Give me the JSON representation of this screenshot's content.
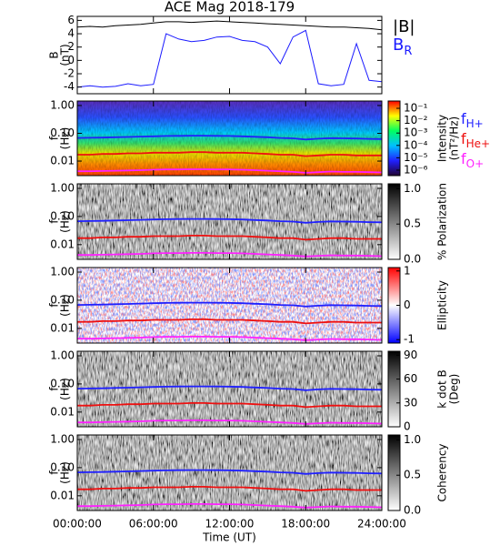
{
  "chart_data": [
    {
      "type": "line",
      "title": "ACE Mag 2018-179",
      "ylabel": [
        "B",
        "(nT)"
      ],
      "x": [
        0,
        1,
        2,
        3,
        4,
        5,
        6,
        7,
        8,
        9,
        10,
        11,
        12,
        13,
        14,
        15,
        16,
        17,
        18,
        19,
        20,
        21,
        22,
        23,
        24
      ],
      "xlim": [
        0,
        24
      ],
      "xticks": [
        0,
        6,
        12,
        18,
        24
      ],
      "ylim": [
        -5,
        6.6
      ],
      "yticks": [
        6,
        4,
        2,
        0,
        -2,
        -4
      ],
      "series": [
        {
          "name": "|B|",
          "color": "#000000",
          "values": [
            5.0,
            5.1,
            5.0,
            5.2,
            5.3,
            5.4,
            5.6,
            5.8,
            5.8,
            5.7,
            5.8,
            5.9,
            5.8,
            5.7,
            5.6,
            5.5,
            5.4,
            5.3,
            5.2,
            5.1,
            5.0,
            5.0,
            4.9,
            4.8,
            4.6
          ]
        },
        {
          "name": "B",
          "name_sub": "R",
          "color": "#1a1aff",
          "values": [
            -4.0,
            -3.8,
            -4.0,
            -3.9,
            -3.5,
            -3.8,
            -3.6,
            4.0,
            3.2,
            2.8,
            3.0,
            3.5,
            3.6,
            3.0,
            2.8,
            2.0,
            -0.5,
            3.5,
            4.5,
            -3.5,
            -3.8,
            -3.6,
            2.5,
            -3.0,
            -3.2
          ]
        }
      ]
    },
    {
      "type": "spectrogram",
      "style": "rainbow",
      "ylabel": [
        "f",
        "(Hz)"
      ],
      "x": [
        0,
        1,
        2,
        3,
        4,
        5,
        6,
        7,
        8,
        9,
        10,
        11,
        12,
        13,
        14,
        15,
        16,
        17,
        18,
        19,
        20,
        21,
        22,
        23,
        24
      ],
      "xlim": [
        0,
        24
      ],
      "xticks": [
        0,
        6,
        12,
        18,
        24
      ],
      "ylim": [
        0.003,
        1.45
      ],
      "ylog": true,
      "yticks": [
        {
          "value": 1,
          "label": "1.00"
        },
        {
          "value": 0.1,
          "label": "0.10"
        },
        {
          "value": 0.01,
          "label": "0.01"
        }
      ],
      "clim": [
        3.6e-07,
        0.39
      ],
      "clog": true,
      "cticks": [
        {
          "value": 0.1,
          "label": "10⁻¹"
        },
        {
          "value": 0.01,
          "label": "10⁻²"
        },
        {
          "value": 0.001,
          "label": "10⁻³"
        },
        {
          "value": 0.0001,
          "label": "10⁻⁴"
        },
        {
          "value": 1e-05,
          "label": "10⁻⁵"
        },
        {
          "value": 1e-06,
          "label": "10⁻⁶"
        }
      ],
      "colorbar_label": [
        "Intensity",
        "(nT²/Hz)"
      ],
      "series": [
        {
          "name": "f",
          "name_sub": "H+",
          "color": "#2020ff",
          "values": [
            0.068,
            0.069,
            0.07,
            0.072,
            0.074,
            0.076,
            0.078,
            0.08,
            0.081,
            0.082,
            0.082,
            0.081,
            0.08,
            0.078,
            0.075,
            0.072,
            0.068,
            0.066,
            0.06,
            0.064,
            0.067,
            0.066,
            0.065,
            0.063,
            0.062
          ]
        },
        {
          "name": "f",
          "name_sub": "He+",
          "color": "#ee1010",
          "values": [
            0.017,
            0.017,
            0.018,
            0.018,
            0.019,
            0.019,
            0.02,
            0.02,
            0.02,
            0.021,
            0.021,
            0.02,
            0.02,
            0.02,
            0.019,
            0.018,
            0.017,
            0.017,
            0.015,
            0.016,
            0.017,
            0.017,
            0.016,
            0.016,
            0.016
          ]
        },
        {
          "name": "f",
          "name_sub": "O+",
          "color": "#ff20ff",
          "values": [
            0.0043,
            0.0043,
            0.0044,
            0.0045,
            0.0046,
            0.0047,
            0.0049,
            0.005,
            0.005,
            0.0051,
            0.0051,
            0.005,
            0.005,
            0.0049,
            0.0047,
            0.0045,
            0.0043,
            0.0041,
            0.0038,
            0.004,
            0.0042,
            0.0041,
            0.0041,
            0.004,
            0.0039
          ]
        }
      ]
    },
    {
      "type": "spectrogram",
      "style": "gray",
      "ylabel": [
        "f",
        "(Hz)"
      ],
      "x": [
        0,
        1,
        2,
        3,
        4,
        5,
        6,
        7,
        8,
        9,
        10,
        11,
        12,
        13,
        14,
        15,
        16,
        17,
        18,
        19,
        20,
        21,
        22,
        23,
        24
      ],
      "xlim": [
        0,
        24
      ],
      "xticks": [
        0,
        6,
        12,
        18,
        24
      ],
      "ylim": [
        0.003,
        1.45
      ],
      "ylog": true,
      "yticks": [
        {
          "value": 1,
          "label": "1.00"
        },
        {
          "value": 0.1,
          "label": "0.10"
        },
        {
          "value": 0.01,
          "label": "0.01"
        }
      ],
      "clim": [
        0,
        1.07
      ],
      "cticks": [
        {
          "value": 1,
          "label": "1.0"
        },
        {
          "value": 0.5,
          "label": "0.5"
        },
        {
          "value": 0,
          "label": "0.0"
        }
      ],
      "colorbar_label": [
        "% Polarization"
      ],
      "series": [
        {
          "color": "#2020ff",
          "values": [
            0.068,
            0.069,
            0.07,
            0.072,
            0.074,
            0.076,
            0.078,
            0.08,
            0.081,
            0.082,
            0.082,
            0.081,
            0.08,
            0.078,
            0.075,
            0.072,
            0.068,
            0.066,
            0.06,
            0.064,
            0.067,
            0.066,
            0.065,
            0.063,
            0.062
          ]
        },
        {
          "color": "#ee1010",
          "values": [
            0.017,
            0.017,
            0.018,
            0.018,
            0.019,
            0.019,
            0.02,
            0.02,
            0.02,
            0.021,
            0.021,
            0.02,
            0.02,
            0.02,
            0.019,
            0.018,
            0.017,
            0.017,
            0.015,
            0.016,
            0.017,
            0.017,
            0.016,
            0.016,
            0.016
          ]
        },
        {
          "color": "#ff20ff",
          "values": [
            0.0043,
            0.0043,
            0.0044,
            0.0045,
            0.0046,
            0.0047,
            0.0049,
            0.005,
            0.005,
            0.0051,
            0.0051,
            0.005,
            0.005,
            0.0049,
            0.0047,
            0.0045,
            0.0043,
            0.0041,
            0.0038,
            0.004,
            0.0042,
            0.0041,
            0.0041,
            0.004,
            0.0039
          ]
        }
      ]
    },
    {
      "type": "spectrogram",
      "style": "diverging",
      "ylabel": [
        "f",
        "(Hz)"
      ],
      "x": [
        0,
        1,
        2,
        3,
        4,
        5,
        6,
        7,
        8,
        9,
        10,
        11,
        12,
        13,
        14,
        15,
        16,
        17,
        18,
        19,
        20,
        21,
        22,
        23,
        24
      ],
      "xlim": [
        0,
        24
      ],
      "xticks": [
        0,
        6,
        12,
        18,
        24
      ],
      "ylim": [
        0.003,
        1.45
      ],
      "ylog": true,
      "yticks": [
        {
          "value": 1,
          "label": "1.00"
        },
        {
          "value": 0.1,
          "label": "0.10"
        },
        {
          "value": 0.01,
          "label": "0.01"
        }
      ],
      "clim": [
        -1.1,
        1.1
      ],
      "cticks": [
        1,
        0,
        -1
      ],
      "colorbar_label": [
        "Ellipticity"
      ],
      "series": [
        {
          "color": "#2020ff",
          "values": [
            0.068,
            0.069,
            0.07,
            0.072,
            0.074,
            0.076,
            0.078,
            0.08,
            0.081,
            0.082,
            0.082,
            0.081,
            0.08,
            0.078,
            0.075,
            0.072,
            0.068,
            0.066,
            0.06,
            0.064,
            0.067,
            0.066,
            0.065,
            0.063,
            0.062
          ]
        },
        {
          "color": "#ee1010",
          "values": [
            0.017,
            0.017,
            0.018,
            0.018,
            0.019,
            0.019,
            0.02,
            0.02,
            0.02,
            0.021,
            0.021,
            0.02,
            0.02,
            0.02,
            0.019,
            0.018,
            0.017,
            0.017,
            0.015,
            0.016,
            0.017,
            0.017,
            0.016,
            0.016,
            0.016
          ]
        },
        {
          "color": "#ff20ff",
          "values": [
            0.0043,
            0.0043,
            0.0044,
            0.0045,
            0.0046,
            0.0047,
            0.0049,
            0.005,
            0.005,
            0.0051,
            0.0051,
            0.005,
            0.005,
            0.0049,
            0.0047,
            0.0045,
            0.0043,
            0.0041,
            0.0038,
            0.004,
            0.0042,
            0.0041,
            0.0041,
            0.004,
            0.0039
          ]
        }
      ]
    },
    {
      "type": "spectrogram",
      "style": "gray",
      "ylabel": [
        "f",
        "(Hz)"
      ],
      "x": [
        0,
        1,
        2,
        3,
        4,
        5,
        6,
        7,
        8,
        9,
        10,
        11,
        12,
        13,
        14,
        15,
        16,
        17,
        18,
        19,
        20,
        21,
        22,
        23,
        24
      ],
      "xlim": [
        0,
        24
      ],
      "xticks": [
        0,
        6,
        12,
        18,
        24
      ],
      "ylim": [
        0.003,
        1.45
      ],
      "ylog": true,
      "yticks": [
        {
          "value": 1,
          "label": "1.00"
        },
        {
          "value": 0.1,
          "label": "0.10"
        },
        {
          "value": 0.01,
          "label": "0.01"
        }
      ],
      "clim": [
        0,
        95
      ],
      "cticks": [
        90,
        60,
        30,
        0
      ],
      "colorbar_label": [
        "k dot B",
        "(Deg)"
      ],
      "series": [
        {
          "color": "#2020ff",
          "values": [
            0.068,
            0.069,
            0.07,
            0.072,
            0.074,
            0.076,
            0.078,
            0.08,
            0.081,
            0.082,
            0.082,
            0.081,
            0.08,
            0.078,
            0.075,
            0.072,
            0.068,
            0.066,
            0.06,
            0.064,
            0.067,
            0.066,
            0.065,
            0.063,
            0.062
          ]
        },
        {
          "color": "#ee1010",
          "values": [
            0.017,
            0.017,
            0.018,
            0.018,
            0.019,
            0.019,
            0.02,
            0.02,
            0.02,
            0.021,
            0.021,
            0.02,
            0.02,
            0.02,
            0.019,
            0.018,
            0.017,
            0.017,
            0.015,
            0.016,
            0.017,
            0.017,
            0.016,
            0.016,
            0.016
          ]
        },
        {
          "color": "#ff20ff",
          "values": [
            0.0043,
            0.0043,
            0.0044,
            0.0045,
            0.0046,
            0.0047,
            0.0049,
            0.005,
            0.005,
            0.0051,
            0.0051,
            0.005,
            0.005,
            0.0049,
            0.0047,
            0.0045,
            0.0043,
            0.0041,
            0.0038,
            0.004,
            0.0042,
            0.0041,
            0.0041,
            0.004,
            0.0039
          ]
        }
      ]
    },
    {
      "type": "spectrogram",
      "style": "gray",
      "ylabel": [
        "f",
        "(Hz)"
      ],
      "x": [
        0,
        1,
        2,
        3,
        4,
        5,
        6,
        7,
        8,
        9,
        10,
        11,
        12,
        13,
        14,
        15,
        16,
        17,
        18,
        19,
        20,
        21,
        22,
        23,
        24
      ],
      "xlim": [
        0,
        24
      ],
      "xticks": [
        {
          "value": 0,
          "label": "00:00:00"
        },
        {
          "value": 6,
          "label": "06:00:00"
        },
        {
          "value": 12,
          "label": "12:00:00"
        },
        {
          "value": 18,
          "label": "18:00:00"
        },
        {
          "value": 24,
          "label": "24:00:00"
        }
      ],
      "xlabel": "Time (UT)",
      "ylim": [
        0.003,
        1.45
      ],
      "ylog": true,
      "yticks": [
        {
          "value": 1,
          "label": "1.00"
        },
        {
          "value": 0.1,
          "label": "0.10"
        },
        {
          "value": 0.01,
          "label": "0.01"
        }
      ],
      "clim": [
        0,
        1.07
      ],
      "cticks": [
        {
          "value": 1,
          "label": "1.0"
        },
        {
          "value": 0.5,
          "label": "0.5"
        },
        {
          "value": 0,
          "label": "0.0"
        }
      ],
      "colorbar_label": [
        "Coherency"
      ],
      "series": [
        {
          "color": "#2020ff",
          "values": [
            0.068,
            0.069,
            0.07,
            0.072,
            0.074,
            0.076,
            0.078,
            0.08,
            0.081,
            0.082,
            0.082,
            0.081,
            0.08,
            0.078,
            0.075,
            0.072,
            0.068,
            0.066,
            0.06,
            0.064,
            0.067,
            0.066,
            0.065,
            0.063,
            0.062
          ]
        },
        {
          "color": "#ee1010",
          "values": [
            0.017,
            0.017,
            0.018,
            0.018,
            0.019,
            0.019,
            0.02,
            0.02,
            0.02,
            0.021,
            0.021,
            0.02,
            0.02,
            0.02,
            0.019,
            0.018,
            0.017,
            0.017,
            0.015,
            0.016,
            0.017,
            0.017,
            0.016,
            0.016,
            0.016
          ]
        },
        {
          "color": "#ff20ff",
          "values": [
            0.0043,
            0.0043,
            0.0044,
            0.0045,
            0.0046,
            0.0047,
            0.0049,
            0.005,
            0.005,
            0.0051,
            0.0051,
            0.005,
            0.005,
            0.0049,
            0.0047,
            0.0045,
            0.0043,
            0.0041,
            0.0038,
            0.004,
            0.0042,
            0.0041,
            0.0041,
            0.004,
            0.0039
          ]
        }
      ]
    }
  ]
}
